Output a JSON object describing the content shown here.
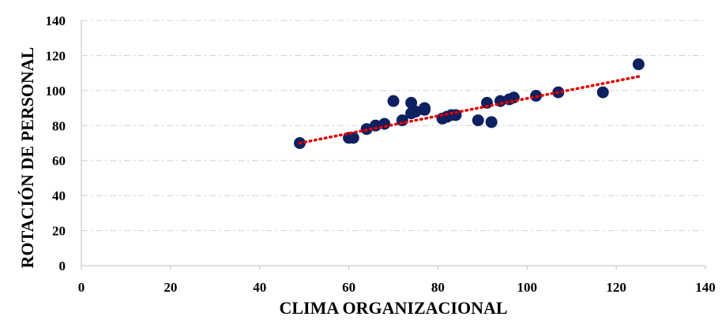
{
  "chart_data": {
    "type": "scatter",
    "x_label": "CLIMA ORGANIZACIONAL",
    "y_label": "ROTACIÓN DE PERSONAL",
    "xlim": [
      0,
      140
    ],
    "ylim": [
      0,
      140
    ],
    "xticks": [
      0,
      20,
      40,
      60,
      80,
      100,
      120,
      140
    ],
    "yticks": [
      0,
      20,
      40,
      60,
      80,
      100,
      120,
      140
    ],
    "grid": true,
    "color": "#0d2060",
    "x": [
      49,
      60,
      61,
      64,
      66,
      68,
      70,
      72,
      74,
      74,
      75,
      77,
      77,
      81,
      82,
      83,
      84,
      89,
      91,
      92,
      94,
      96,
      97,
      102,
      107,
      117,
      125
    ],
    "y": [
      70,
      73,
      73,
      78,
      80,
      81,
      94,
      83,
      93,
      87,
      88,
      90,
      89,
      84,
      85,
      86,
      86,
      83,
      93,
      82,
      94,
      95,
      96,
      97,
      99,
      99,
      115
    ],
    "trendline": {
      "color": "#e00000",
      "x": [
        49,
        125
      ],
      "y": [
        70,
        108
      ]
    }
  }
}
